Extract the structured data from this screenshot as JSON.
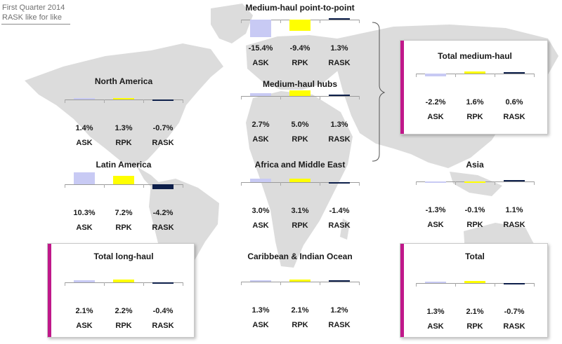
{
  "header": {
    "line1": "First Quarter 2014",
    "line2": "RASK like for like"
  },
  "colors": {
    "ask": "#c8caf4",
    "rpk": "#ffff00",
    "rask": "#0d1f4a",
    "accent": "#c0188a",
    "map": "#dcdcdc"
  },
  "chart_data": [
    {
      "type": "bar",
      "title": "Medium-haul point-to-point",
      "categories": [
        "ASK",
        "RPK",
        "RASK"
      ],
      "values": [
        -15.4,
        -9.4,
        1.3
      ],
      "labels": [
        "-15.4%",
        "-9.4%",
        "1.3%"
      ]
    },
    {
      "type": "bar",
      "title": "Medium-haul hubs",
      "categories": [
        "ASK",
        "RPK",
        "RASK"
      ],
      "values": [
        2.7,
        5.0,
        1.3
      ],
      "labels": [
        "2.7%",
        "5.0%",
        "1.3%"
      ]
    },
    {
      "type": "bar",
      "title": "Total medium-haul",
      "categories": [
        "ASK",
        "RPK",
        "RASK"
      ],
      "values": [
        -2.2,
        1.6,
        0.6
      ],
      "labels": [
        "-2.2%",
        "1.6%",
        "0.6%"
      ]
    },
    {
      "type": "bar",
      "title": "North America",
      "categories": [
        "ASK",
        "RPK",
        "RASK"
      ],
      "values": [
        1.4,
        1.3,
        -0.7
      ],
      "labels": [
        "1.4%",
        "1.3%",
        "-0.7%"
      ]
    },
    {
      "type": "bar",
      "title": "Latin America",
      "categories": [
        "ASK",
        "RPK",
        "RASK"
      ],
      "values": [
        10.3,
        7.2,
        -4.2
      ],
      "labels": [
        "10.3%",
        "7.2%",
        "-4.2%"
      ]
    },
    {
      "type": "bar",
      "title": "Africa and Middle East",
      "categories": [
        "ASK",
        "RPK",
        "RASK"
      ],
      "values": [
        3.0,
        3.1,
        -1.4
      ],
      "labels": [
        "3.0%",
        "3.1%",
        "-1.4%"
      ]
    },
    {
      "type": "bar",
      "title": "Asia",
      "categories": [
        "ASK",
        "RPK",
        "RASK"
      ],
      "values": [
        -1.3,
        -0.1,
        1.1
      ],
      "labels": [
        "-1.3%",
        "-0.1%",
        "1.1%"
      ]
    },
    {
      "type": "bar",
      "title": "Total long-haul",
      "categories": [
        "ASK",
        "RPK",
        "RASK"
      ],
      "values": [
        2.1,
        2.2,
        -0.4
      ],
      "labels": [
        "2.1%",
        "2.2%",
        "-0.4%"
      ]
    },
    {
      "type": "bar",
      "title": "Caribbean & Indian Ocean",
      "categories": [
        "ASK",
        "RPK",
        "RASK"
      ],
      "values": [
        1.3,
        2.1,
        1.2
      ],
      "labels": [
        "1.3%",
        "2.1%",
        "1.2%"
      ]
    },
    {
      "type": "bar",
      "title": "Total",
      "categories": [
        "ASK",
        "RPK",
        "RASK"
      ],
      "values": [
        1.3,
        2.1,
        -0.7
      ],
      "labels": [
        "1.3%",
        "2.1%",
        "-0.7%"
      ]
    }
  ]
}
